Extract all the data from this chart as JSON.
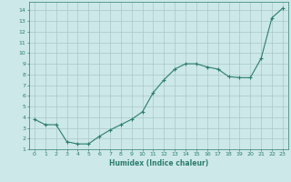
{
  "x": [
    0,
    1,
    2,
    3,
    4,
    5,
    6,
    7,
    8,
    9,
    10,
    11,
    12,
    13,
    14,
    15,
    16,
    17,
    18,
    19,
    20,
    21,
    22,
    23
  ],
  "y": [
    3.8,
    3.3,
    3.3,
    1.7,
    1.5,
    1.5,
    2.2,
    2.8,
    3.3,
    3.8,
    4.5,
    6.3,
    7.5,
    8.5,
    9.0,
    9.0,
    8.7,
    8.5,
    7.8,
    7.7,
    7.7,
    9.5,
    13.3,
    14.2
  ],
  "xlabel": "Humidex (Indice chaleur)",
  "ylabel": "",
  "xlim": [
    -0.5,
    23.5
  ],
  "ylim": [
    1,
    14.8
  ],
  "yticks": [
    1,
    2,
    3,
    4,
    5,
    6,
    7,
    8,
    9,
    10,
    11,
    12,
    13,
    14
  ],
  "xticks": [
    0,
    1,
    2,
    3,
    4,
    5,
    6,
    7,
    8,
    9,
    10,
    11,
    12,
    13,
    14,
    15,
    16,
    17,
    18,
    19,
    20,
    21,
    22,
    23
  ],
  "line_color": "#2d7d6e",
  "marker": "+",
  "bg_color": "#cce8e8",
  "grid_color": "#aac8c8",
  "tick_color": "#2d7d6e",
  "label_color": "#2d7d6e"
}
